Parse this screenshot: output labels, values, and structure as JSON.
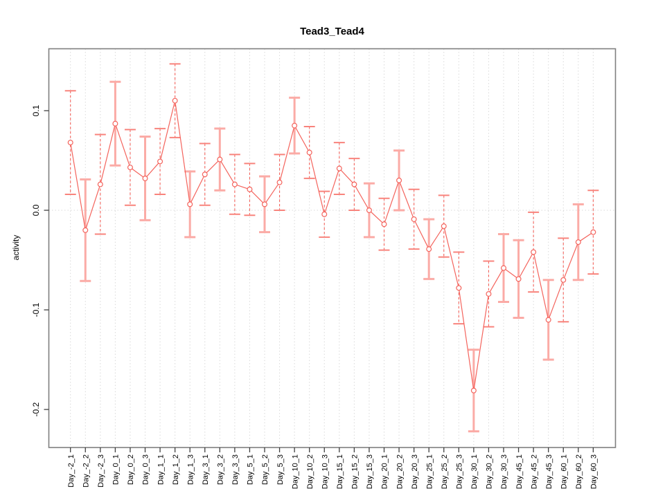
{
  "window": {
    "background": "#ffffff"
  },
  "chart_data": {
    "type": "line",
    "title": "Tead3_Tead4",
    "ylabel": "activity",
    "xlabel": "",
    "legend": "none",
    "grid": {
      "vertical": "dotted line at every category",
      "horizontal": "dotted line at zero only"
    },
    "ylim": [
      -0.238,
      0.162
    ],
    "yticks": [
      {
        "label": "0.1",
        "value": 0.1
      },
      {
        "label": "0.0",
        "value": 0.0
      },
      {
        "label": "-0.1",
        "value": -0.1
      },
      {
        "label": "-0.2",
        "value": -0.2
      }
    ],
    "categories": [
      "Day_-2_1",
      "Day_-2_2",
      "Day_-2_3",
      "Day_0_1",
      "Day_0_2",
      "Day_0_3",
      "Day_1_1",
      "Day_1_2",
      "Day_1_3",
      "Day_3_1",
      "Day_3_2",
      "Day_3_3",
      "Day_5_1",
      "Day_5_2",
      "Day_5_3",
      "Day_10_1",
      "Day_10_2",
      "Day_10_3",
      "Day_15_1",
      "Day_15_2",
      "Day_15_3",
      "Day_20_1",
      "Day_20_2",
      "Day_20_3",
      "Day_25_1",
      "Day_25_2",
      "Day_25_3",
      "Day_30_1",
      "Day_30_2",
      "Day_30_3",
      "Day_45_1",
      "Day_45_2",
      "Day_45_3",
      "Day_60_1",
      "Day_60_2",
      "Day_60_3"
    ],
    "series": [
      {
        "name": "activity",
        "marker": "open-circle",
        "values": [
          0.068,
          -0.02,
          0.026,
          0.087,
          0.043,
          0.032,
          0.049,
          0.11,
          0.006,
          0.036,
          0.051,
          0.026,
          0.021,
          0.006,
          0.028,
          0.085,
          0.058,
          -0.004,
          0.042,
          0.026,
          0.0,
          -0.014,
          0.03,
          -0.009,
          -0.039,
          -0.016,
          -0.078,
          -0.181,
          -0.084,
          -0.058,
          -0.069,
          -0.042,
          -0.11,
          -0.07,
          -0.032,
          -0.022
        ],
        "errors": [
          0.052,
          0.051,
          0.05,
          0.042,
          0.038,
          0.042,
          0.033,
          0.037,
          0.033,
          0.031,
          0.031,
          0.03,
          0.026,
          0.028,
          0.028,
          0.028,
          0.026,
          0.023,
          0.026,
          0.026,
          0.027,
          0.026,
          0.03,
          0.03,
          0.03,
          0.031,
          0.036,
          0.041,
          0.033,
          0.034,
          0.039,
          0.04,
          0.04,
          0.042,
          0.038,
          0.042
        ],
        "error_bar_styles": [
          "dashed",
          "solid",
          "dashed",
          "solid",
          "dashed",
          "solid",
          "dashed",
          "dashed",
          "solid",
          "dashed",
          "solid",
          "dashed",
          "dashed",
          "solid",
          "dashed",
          "solid",
          "dashed",
          "dashed",
          "dashed",
          "dashed",
          "solid",
          "dashed",
          "solid",
          "dashed",
          "solid",
          "dashed",
          "dashed",
          "solid",
          "dashed",
          "solid",
          "solid",
          "dashed",
          "solid",
          "dashed",
          "solid",
          "dashed"
        ]
      }
    ],
    "colors": {
      "series": "#f4635c",
      "error_bar_light": "#fbaba6",
      "error_bar_cap": "#f8837c",
      "marker_fill": "#ffffff",
      "gridline": "#d9d9d9",
      "box": "#7f7f7f",
      "tick": "#3f3f3f",
      "text": "#000000"
    }
  }
}
